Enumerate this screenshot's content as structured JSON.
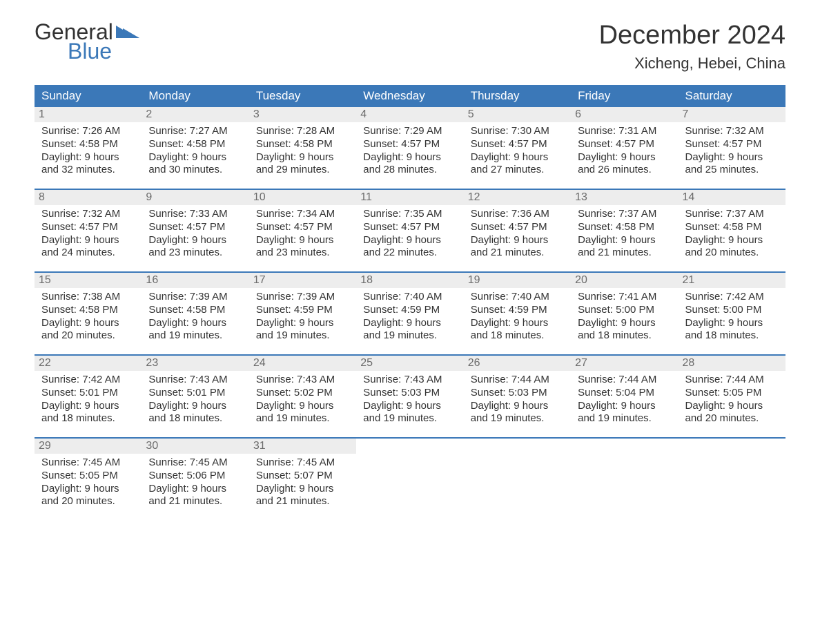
{
  "logo": {
    "general": "General",
    "blue": "Blue",
    "flag_color": "#3b78b8"
  },
  "title": "December 2024",
  "location": "Xicheng, Hebei, China",
  "colors": {
    "header_bg": "#3b78b8",
    "header_text": "#ffffff",
    "daynum_bg": "#ededed",
    "daynum_text": "#6b6b6b",
    "body_text": "#333333",
    "separator": "#3b78b8",
    "background": "#ffffff"
  },
  "day_headers": [
    "Sunday",
    "Monday",
    "Tuesday",
    "Wednesday",
    "Thursday",
    "Friday",
    "Saturday"
  ],
  "weeks": [
    [
      {
        "num": "1",
        "sunrise": "Sunrise: 7:26 AM",
        "sunset": "Sunset: 4:58 PM",
        "day1": "Daylight: 9 hours",
        "day2": "and 32 minutes."
      },
      {
        "num": "2",
        "sunrise": "Sunrise: 7:27 AM",
        "sunset": "Sunset: 4:58 PM",
        "day1": "Daylight: 9 hours",
        "day2": "and 30 minutes."
      },
      {
        "num": "3",
        "sunrise": "Sunrise: 7:28 AM",
        "sunset": "Sunset: 4:58 PM",
        "day1": "Daylight: 9 hours",
        "day2": "and 29 minutes."
      },
      {
        "num": "4",
        "sunrise": "Sunrise: 7:29 AM",
        "sunset": "Sunset: 4:57 PM",
        "day1": "Daylight: 9 hours",
        "day2": "and 28 minutes."
      },
      {
        "num": "5",
        "sunrise": "Sunrise: 7:30 AM",
        "sunset": "Sunset: 4:57 PM",
        "day1": "Daylight: 9 hours",
        "day2": "and 27 minutes."
      },
      {
        "num": "6",
        "sunrise": "Sunrise: 7:31 AM",
        "sunset": "Sunset: 4:57 PM",
        "day1": "Daylight: 9 hours",
        "day2": "and 26 minutes."
      },
      {
        "num": "7",
        "sunrise": "Sunrise: 7:32 AM",
        "sunset": "Sunset: 4:57 PM",
        "day1": "Daylight: 9 hours",
        "day2": "and 25 minutes."
      }
    ],
    [
      {
        "num": "8",
        "sunrise": "Sunrise: 7:32 AM",
        "sunset": "Sunset: 4:57 PM",
        "day1": "Daylight: 9 hours",
        "day2": "and 24 minutes."
      },
      {
        "num": "9",
        "sunrise": "Sunrise: 7:33 AM",
        "sunset": "Sunset: 4:57 PM",
        "day1": "Daylight: 9 hours",
        "day2": "and 23 minutes."
      },
      {
        "num": "10",
        "sunrise": "Sunrise: 7:34 AM",
        "sunset": "Sunset: 4:57 PM",
        "day1": "Daylight: 9 hours",
        "day2": "and 23 minutes."
      },
      {
        "num": "11",
        "sunrise": "Sunrise: 7:35 AM",
        "sunset": "Sunset: 4:57 PM",
        "day1": "Daylight: 9 hours",
        "day2": "and 22 minutes."
      },
      {
        "num": "12",
        "sunrise": "Sunrise: 7:36 AM",
        "sunset": "Sunset: 4:57 PM",
        "day1": "Daylight: 9 hours",
        "day2": "and 21 minutes."
      },
      {
        "num": "13",
        "sunrise": "Sunrise: 7:37 AM",
        "sunset": "Sunset: 4:58 PM",
        "day1": "Daylight: 9 hours",
        "day2": "and 21 minutes."
      },
      {
        "num": "14",
        "sunrise": "Sunrise: 7:37 AM",
        "sunset": "Sunset: 4:58 PM",
        "day1": "Daylight: 9 hours",
        "day2": "and 20 minutes."
      }
    ],
    [
      {
        "num": "15",
        "sunrise": "Sunrise: 7:38 AM",
        "sunset": "Sunset: 4:58 PM",
        "day1": "Daylight: 9 hours",
        "day2": "and 20 minutes."
      },
      {
        "num": "16",
        "sunrise": "Sunrise: 7:39 AM",
        "sunset": "Sunset: 4:58 PM",
        "day1": "Daylight: 9 hours",
        "day2": "and 19 minutes."
      },
      {
        "num": "17",
        "sunrise": "Sunrise: 7:39 AM",
        "sunset": "Sunset: 4:59 PM",
        "day1": "Daylight: 9 hours",
        "day2": "and 19 minutes."
      },
      {
        "num": "18",
        "sunrise": "Sunrise: 7:40 AM",
        "sunset": "Sunset: 4:59 PM",
        "day1": "Daylight: 9 hours",
        "day2": "and 19 minutes."
      },
      {
        "num": "19",
        "sunrise": "Sunrise: 7:40 AM",
        "sunset": "Sunset: 4:59 PM",
        "day1": "Daylight: 9 hours",
        "day2": "and 18 minutes."
      },
      {
        "num": "20",
        "sunrise": "Sunrise: 7:41 AM",
        "sunset": "Sunset: 5:00 PM",
        "day1": "Daylight: 9 hours",
        "day2": "and 18 minutes."
      },
      {
        "num": "21",
        "sunrise": "Sunrise: 7:42 AM",
        "sunset": "Sunset: 5:00 PM",
        "day1": "Daylight: 9 hours",
        "day2": "and 18 minutes."
      }
    ],
    [
      {
        "num": "22",
        "sunrise": "Sunrise: 7:42 AM",
        "sunset": "Sunset: 5:01 PM",
        "day1": "Daylight: 9 hours",
        "day2": "and 18 minutes."
      },
      {
        "num": "23",
        "sunrise": "Sunrise: 7:43 AM",
        "sunset": "Sunset: 5:01 PM",
        "day1": "Daylight: 9 hours",
        "day2": "and 18 minutes."
      },
      {
        "num": "24",
        "sunrise": "Sunrise: 7:43 AM",
        "sunset": "Sunset: 5:02 PM",
        "day1": "Daylight: 9 hours",
        "day2": "and 19 minutes."
      },
      {
        "num": "25",
        "sunrise": "Sunrise: 7:43 AM",
        "sunset": "Sunset: 5:03 PM",
        "day1": "Daylight: 9 hours",
        "day2": "and 19 minutes."
      },
      {
        "num": "26",
        "sunrise": "Sunrise: 7:44 AM",
        "sunset": "Sunset: 5:03 PM",
        "day1": "Daylight: 9 hours",
        "day2": "and 19 minutes."
      },
      {
        "num": "27",
        "sunrise": "Sunrise: 7:44 AM",
        "sunset": "Sunset: 5:04 PM",
        "day1": "Daylight: 9 hours",
        "day2": "and 19 minutes."
      },
      {
        "num": "28",
        "sunrise": "Sunrise: 7:44 AM",
        "sunset": "Sunset: 5:05 PM",
        "day1": "Daylight: 9 hours",
        "day2": "and 20 minutes."
      }
    ],
    [
      {
        "num": "29",
        "sunrise": "Sunrise: 7:45 AM",
        "sunset": "Sunset: 5:05 PM",
        "day1": "Daylight: 9 hours",
        "day2": "and 20 minutes."
      },
      {
        "num": "30",
        "sunrise": "Sunrise: 7:45 AM",
        "sunset": "Sunset: 5:06 PM",
        "day1": "Daylight: 9 hours",
        "day2": "and 21 minutes."
      },
      {
        "num": "31",
        "sunrise": "Sunrise: 7:45 AM",
        "sunset": "Sunset: 5:07 PM",
        "day1": "Daylight: 9 hours",
        "day2": "and 21 minutes."
      },
      null,
      null,
      null,
      null
    ]
  ]
}
